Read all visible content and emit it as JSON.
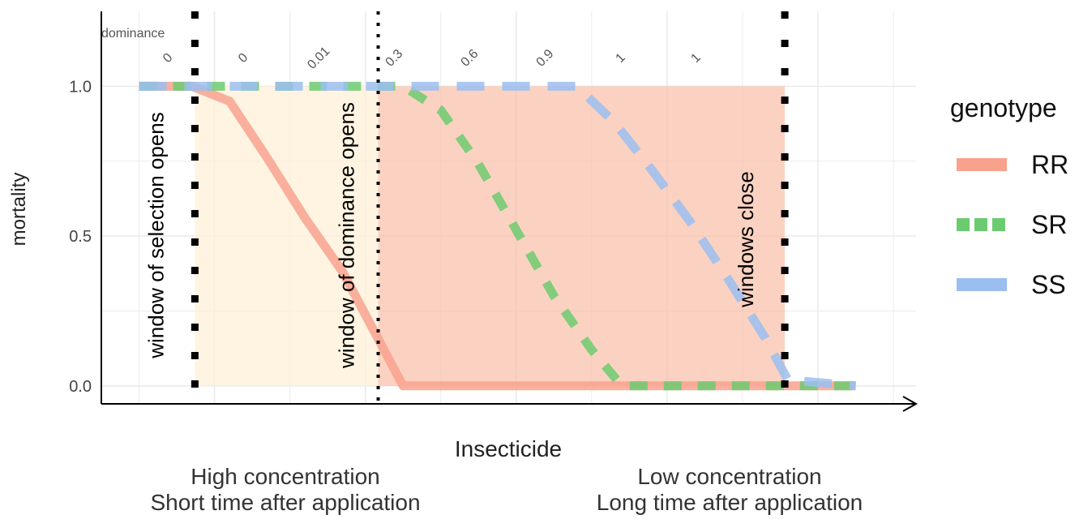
{
  "chart_data": {
    "type": "line",
    "title": "",
    "xlabel": "Insecticide",
    "ylabel": "mortality",
    "caption_left": [
      "High concentration",
      "Short time after application"
    ],
    "caption_right": [
      "Low concentration",
      "Long time after application"
    ],
    "ylim": [
      -0.06,
      1.25
    ],
    "y_ticks": [
      0.0,
      0.5,
      1.0
    ],
    "y_tick_labels": [
      "0.0",
      "0.5",
      "1.0"
    ],
    "xlim": [
      0.5,
      11.3
    ],
    "x_tick_labels_shown": false,
    "grid": true,
    "legend": {
      "title": "genotype",
      "position": "right"
    },
    "series": [
      {
        "name": "RR",
        "color": "#F8A28E",
        "dash": "solid",
        "x": [
          1.0,
          1.7,
          2.2,
          2.7,
          3.2,
          3.7,
          4.5,
          10.5
        ],
        "y": [
          1.0,
          1.0,
          0.95,
          0.76,
          0.56,
          0.38,
          0.0,
          0.0
        ]
      },
      {
        "name": "SR",
        "color": "#6CCB70",
        "dash": "dashed",
        "x": [
          1.0,
          4.5,
          5.0,
          5.5,
          6.0,
          6.5,
          7.0,
          7.4,
          10.5
        ],
        "y": [
          1.0,
          1.0,
          0.92,
          0.74,
          0.52,
          0.3,
          0.12,
          0.0,
          0.0
        ]
      },
      {
        "name": "SS",
        "color": "#9BBEF0",
        "dash": "longdash",
        "x": [
          1.0,
          6.8,
          7.3,
          7.8,
          8.3,
          8.8,
          9.3,
          9.6,
          10.5
        ],
        "y": [
          1.0,
          1.0,
          0.88,
          0.72,
          0.55,
          0.36,
          0.16,
          0.02,
          0.0
        ]
      }
    ],
    "regions": [
      {
        "xmin": 1.74,
        "xmax": 4.17,
        "ymin": 0.0,
        "ymax": 1.0,
        "color": "#FDEFD4"
      },
      {
        "xmin": 4.17,
        "xmax": 9.56,
        "ymin": 0.0,
        "ymax": 1.0,
        "color": "#F9BFA6"
      }
    ],
    "vlines": [
      {
        "x": 1.74,
        "label": "window of selection opens",
        "style": "coarse"
      },
      {
        "x": 4.17,
        "label": "window of dominance opens",
        "style": "fine"
      },
      {
        "x": 9.56,
        "label": "windows close",
        "style": "coarse"
      }
    ],
    "dominance": {
      "label": "dominance",
      "x": [
        2.17,
        3.17,
        4.17,
        5.17,
        6.17,
        7.17,
        8.17,
        9.17
      ],
      "values": [
        "0",
        "0",
        "0.01",
        "0.3",
        "0.6",
        "0.9",
        "1",
        "1"
      ]
    }
  }
}
